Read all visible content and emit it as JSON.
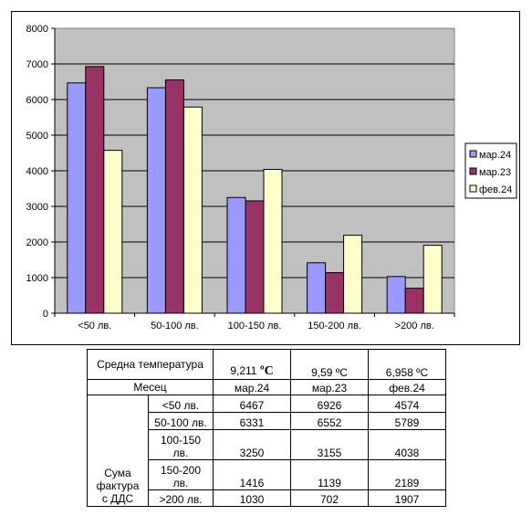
{
  "chart_data": {
    "type": "bar",
    "categories": [
      "<50 лв.",
      "50-100 лв.",
      "100-150 лв.",
      "150-200 лв.",
      ">200 лв."
    ],
    "series": [
      {
        "name": "мар.24",
        "color": "#9999ff",
        "values": [
          6467,
          6331,
          3250,
          1416,
          1030
        ]
      },
      {
        "name": "мар.23",
        "color": "#993366",
        "values": [
          6926,
          6552,
          3155,
          1139,
          702
        ]
      },
      {
        "name": "фев.24",
        "color": "#ffffcc",
        "values": [
          4574,
          5789,
          4038,
          2189,
          1907
        ]
      }
    ],
    "ylim": [
      0,
      8000
    ],
    "yticks": [
      0,
      1000,
      2000,
      3000,
      4000,
      5000,
      6000,
      7000,
      8000
    ],
    "plot_background": "#c0c0c0",
    "grid": true,
    "legend_position": "right"
  },
  "table": {
    "temp_label": "Средна температура",
    "temperatures": [
      {
        "value": "9,211",
        "unit": "ºC"
      },
      {
        "value": "9,59 ºC",
        "unit": ""
      },
      {
        "value": "6,958 ºC",
        "unit": ""
      }
    ],
    "month_label": "Месец",
    "months": [
      "мар.24",
      "мар.23",
      "фев.24"
    ],
    "sum_label": "Сума фактура с ДДС",
    "rows": [
      {
        "label": "<50 лв.",
        "values": [
          "6467",
          "6926",
          "4574"
        ]
      },
      {
        "label": "50-100 лв.",
        "values": [
          "6331",
          "6552",
          "5789"
        ]
      },
      {
        "label": "100-150 лв.",
        "values": [
          "3250",
          "3155",
          "4038"
        ]
      },
      {
        "label": "150-200 лв.",
        "values": [
          "1416",
          "1139",
          "2189"
        ]
      },
      {
        "label": ">200 лв.",
        "values": [
          "1030",
          "702",
          "1907"
        ]
      }
    ]
  }
}
